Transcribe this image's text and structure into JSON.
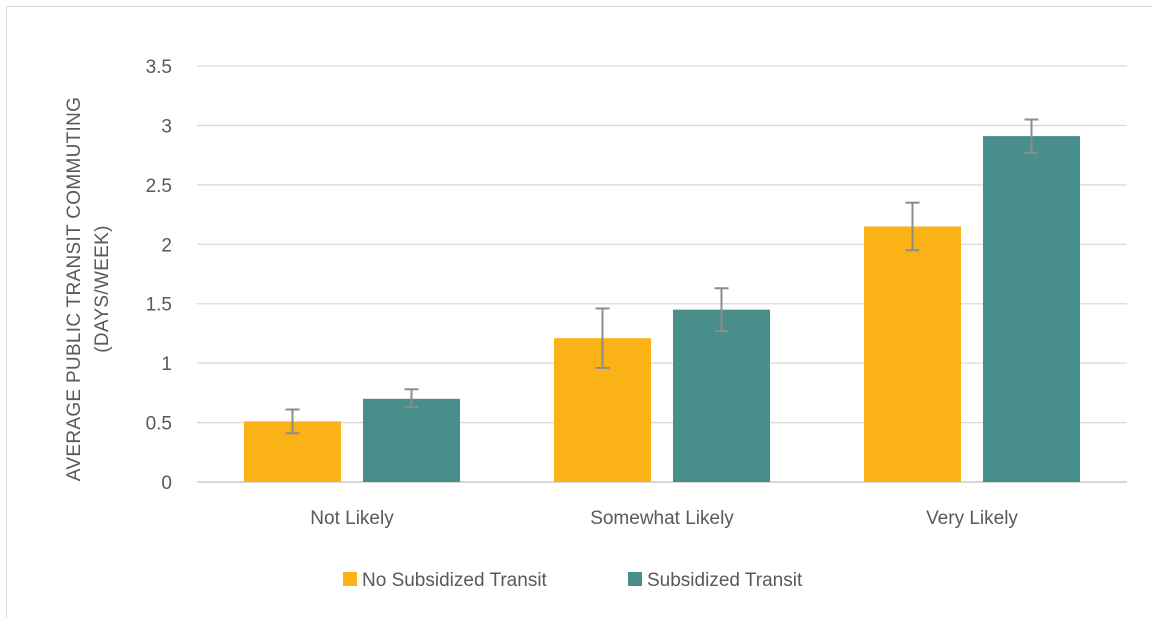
{
  "chart_data": {
    "type": "bar",
    "title": "",
    "xlabel": "",
    "ylabel_lines": [
      "AVERAGE PUBLIC TRANSIT COMMUTING",
      "(DAYS/WEEK)"
    ],
    "ylim": [
      0,
      3.5
    ],
    "yticks": [
      "0",
      "0.5",
      "1",
      "1.5",
      "2",
      "2.5",
      "3",
      "3.5"
    ],
    "categories": [
      "Not Likely",
      "Somewhat Likely",
      "Very Likely"
    ],
    "series": [
      {
        "name": "No Subsidized Transit",
        "color": "#FBB217",
        "values": [
          0.51,
          1.21,
          2.15
        ],
        "error_low": [
          0.41,
          0.96,
          1.95
        ],
        "error_high": [
          0.61,
          1.46,
          2.35
        ]
      },
      {
        "name": "Subsidized Transit",
        "color": "#488E8A",
        "values": [
          0.7,
          1.45,
          2.91
        ],
        "error_low": [
          0.63,
          1.27,
          2.77
        ],
        "error_high": [
          0.78,
          1.63,
          3.05
        ]
      }
    ],
    "grid": true,
    "legend_position": "bottom"
  }
}
